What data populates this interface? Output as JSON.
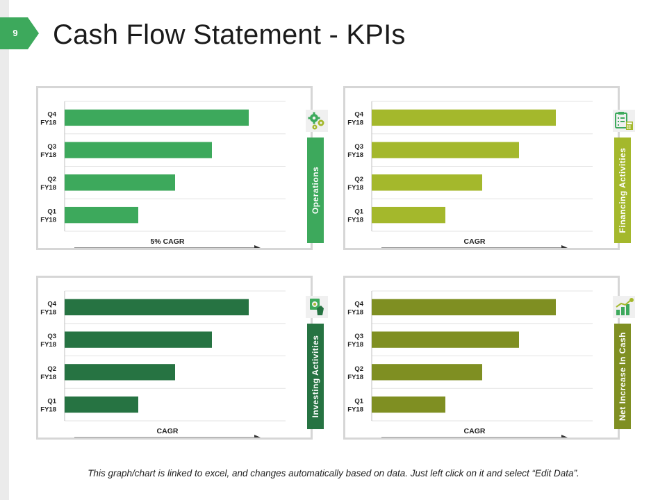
{
  "slide": {
    "number": "9",
    "title": "Cash Flow Statement - KPIs"
  },
  "footer_note": "This graph/chart is linked to excel, and changes automatically based on data. Just left click on it and select “Edit Data”.",
  "chart_data": [
    {
      "type": "bar",
      "orientation": "horizontal",
      "categories": [
        "Q4 FY18",
        "Q3 FY18",
        "Q2 FY18",
        "Q1 FY18"
      ],
      "values": [
        100,
        80,
        60,
        40
      ],
      "xlabel": "5% CAGR",
      "side_label": "Operations",
      "icon": "gears-icon",
      "color": "#3da95c",
      "xlim": [
        0,
        120
      ],
      "grid": true
    },
    {
      "type": "bar",
      "orientation": "horizontal",
      "categories": [
        "Q4 FY18",
        "Q3 FY18",
        "Q2 FY18",
        "Q1 FY18"
      ],
      "values": [
        100,
        80,
        60,
        40
      ],
      "xlabel": "CAGR",
      "side_label": "Financing Activities",
      "icon": "clipboard-calculator-icon",
      "color": "#a4b82c",
      "xlim": [
        0,
        120
      ],
      "grid": true
    },
    {
      "type": "bar",
      "orientation": "horizontal",
      "categories": [
        "Q4 FY18",
        "Q3 FY18",
        "Q2 FY18",
        "Q1 FY18"
      ],
      "values": [
        100,
        80,
        60,
        40
      ],
      "xlabel": "CAGR",
      "side_label": "Investing Activities",
      "icon": "money-hand-icon",
      "color": "#267342",
      "xlim": [
        0,
        120
      ],
      "grid": true
    },
    {
      "type": "bar",
      "orientation": "horizontal",
      "categories": [
        "Q4 FY18",
        "Q3 FY18",
        "Q2 FY18",
        "Q1 FY18"
      ],
      "values": [
        100,
        80,
        60,
        40
      ],
      "xlabel": "CAGR",
      "side_label": "Net Increase In Cash",
      "icon": "growth-chart-icon",
      "color": "#7f8f22",
      "xlim": [
        0,
        120
      ],
      "grid": true
    }
  ]
}
